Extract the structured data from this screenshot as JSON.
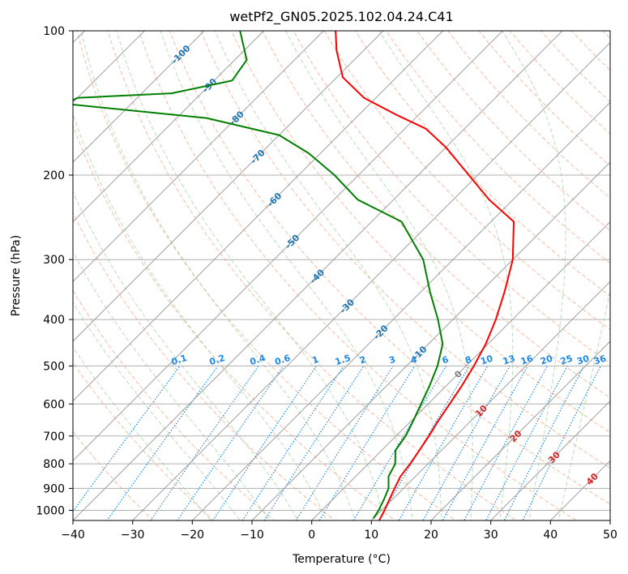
{
  "chart_data": {
    "type": "line",
    "diagram": "skew-t log-p",
    "title": "wetPf2_GN05.2025.102.04.24.C41",
    "xlabel": "Temperature (°C)",
    "ylabel": "Pressure (hPa)",
    "xlim": [
      -40,
      50
    ],
    "ylim": [
      1050,
      100
    ],
    "y_scale": "log",
    "x_ticks": [
      -40,
      -30,
      -20,
      -10,
      0,
      10,
      20,
      30,
      40,
      50
    ],
    "y_ticks": [
      100,
      200,
      300,
      400,
      500,
      600,
      700,
      800,
      900,
      1000
    ],
    "grid": true,
    "colors": {
      "temperature": "#ff0000",
      "dewpoint": "#008000",
      "isotherm": "#a0a0a0",
      "dry_adiabat": "#f4a582",
      "moist_adiabat": "#a6d6a6",
      "mixing_ratio": "#1e88e5",
      "isotherm_label": "#1f77b4",
      "dry_adiabat_label": "#d62728"
    },
    "series": [
      {
        "name": "",
        "role": "temperature",
        "points": [
          [
            11.3,
            1050
          ],
          [
            10.5,
            1000
          ],
          [
            9.5,
            950
          ],
          [
            8.5,
            900
          ],
          [
            7.5,
            850
          ],
          [
            7.0,
            800
          ],
          [
            6.3,
            750
          ],
          [
            5.5,
            700
          ],
          [
            4.5,
            650
          ],
          [
            3.6,
            600
          ],
          [
            2.6,
            550
          ],
          [
            1.3,
            500
          ],
          [
            -0.4,
            450
          ],
          [
            -2.8,
            400
          ],
          [
            -6.0,
            350
          ],
          [
            -10.0,
            300
          ],
          [
            -16.2,
            250
          ],
          [
            -24.0,
            225
          ],
          [
            -31.5,
            200
          ],
          [
            -40.0,
            175
          ],
          [
            -46.5,
            160
          ],
          [
            -53.5,
            150
          ],
          [
            -62.0,
            138
          ],
          [
            -69.0,
            125
          ],
          [
            -74.5,
            110
          ],
          [
            -78.0,
            100
          ]
        ]
      },
      {
        "name": "",
        "role": "dewpoint",
        "points": [
          [
            10.0,
            1040
          ],
          [
            9.5,
            1000
          ],
          [
            8.6,
            950
          ],
          [
            7.5,
            900
          ],
          [
            5.5,
            850
          ],
          [
            4.5,
            800
          ],
          [
            2.3,
            750
          ],
          [
            1.6,
            700
          ],
          [
            0.3,
            650
          ],
          [
            -1.2,
            600
          ],
          [
            -2.8,
            550
          ],
          [
            -4.8,
            500
          ],
          [
            -7.6,
            450
          ],
          [
            -12.5,
            400
          ],
          [
            -18.5,
            350
          ],
          [
            -25.0,
            300
          ],
          [
            -35.0,
            250
          ],
          [
            -46.0,
            225
          ],
          [
            -54.0,
            200
          ],
          [
            -62.0,
            180
          ],
          [
            -70.0,
            165
          ],
          [
            -85.0,
            152
          ],
          [
            -111.0,
            142
          ],
          [
            -110.0,
            138
          ],
          [
            -95.0,
            135
          ],
          [
            -87.0,
            127
          ],
          [
            -88.0,
            115
          ],
          [
            -94.0,
            100
          ]
        ]
      }
    ],
    "isotherm_labels": [
      "-100",
      "-90",
      "-80",
      "-70",
      "-60",
      "-50",
      "-40",
      "-30",
      "-20",
      "-10",
      "0",
      "10",
      "20",
      "30",
      "40"
    ],
    "isotherm_label_values": [
      -100,
      -90,
      -80,
      -70,
      -60,
      -50,
      -40,
      -30,
      -20,
      -10
    ],
    "dry_adiabat_label_values": [
      0,
      10,
      20,
      30,
      40
    ],
    "mixing_ratio_labels": [
      "0.1",
      "0.2",
      "0.4",
      "0.6",
      "1",
      "1.5",
      "2",
      "3",
      "4",
      "6",
      "8",
      "10",
      "13",
      "16",
      "20",
      "25",
      "30",
      "36"
    ]
  }
}
